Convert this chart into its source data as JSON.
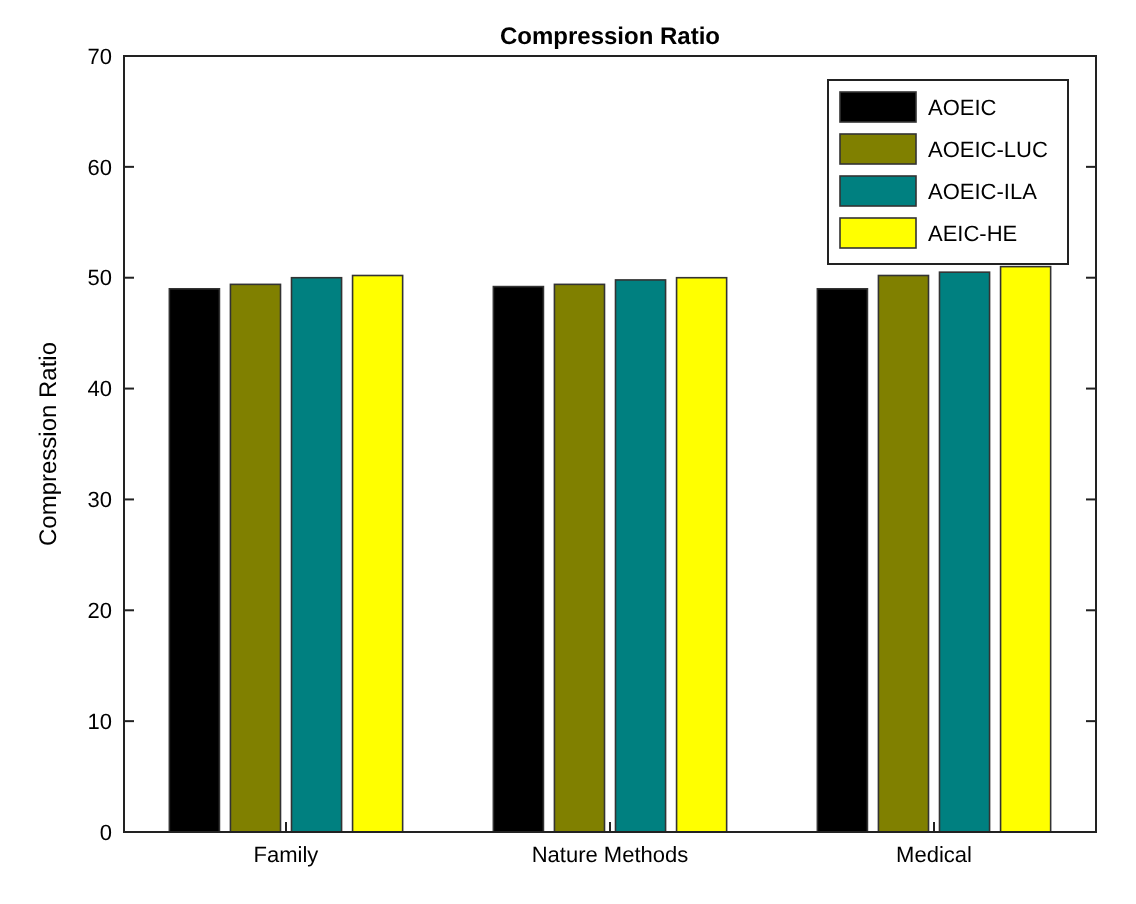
{
  "chart_data": {
    "type": "bar",
    "title": "Compression Ratio",
    "ylabel": "Compression Ratio",
    "categories": [
      "Family",
      "Nature Methods",
      "Medical"
    ],
    "series": [
      {
        "name": "AOEIC",
        "color": "#000000",
        "values": [
          49.0,
          49.2,
          49.0
        ]
      },
      {
        "name": "AOEIC-LUC",
        "color": "#808000",
        "values": [
          49.4,
          49.4,
          50.2
        ]
      },
      {
        "name": "AOEIC-ILA",
        "color": "#008080",
        "values": [
          50.0,
          49.8,
          50.5
        ]
      },
      {
        "name": "AEIC-HE",
        "color": "#ffff00",
        "values": [
          50.2,
          50.0,
          51.0
        ]
      }
    ],
    "ylim": [
      0,
      70
    ],
    "yticks": [
      0,
      10,
      20,
      30,
      40,
      50,
      60,
      70
    ],
    "legend": "top right",
    "grid": false
  }
}
